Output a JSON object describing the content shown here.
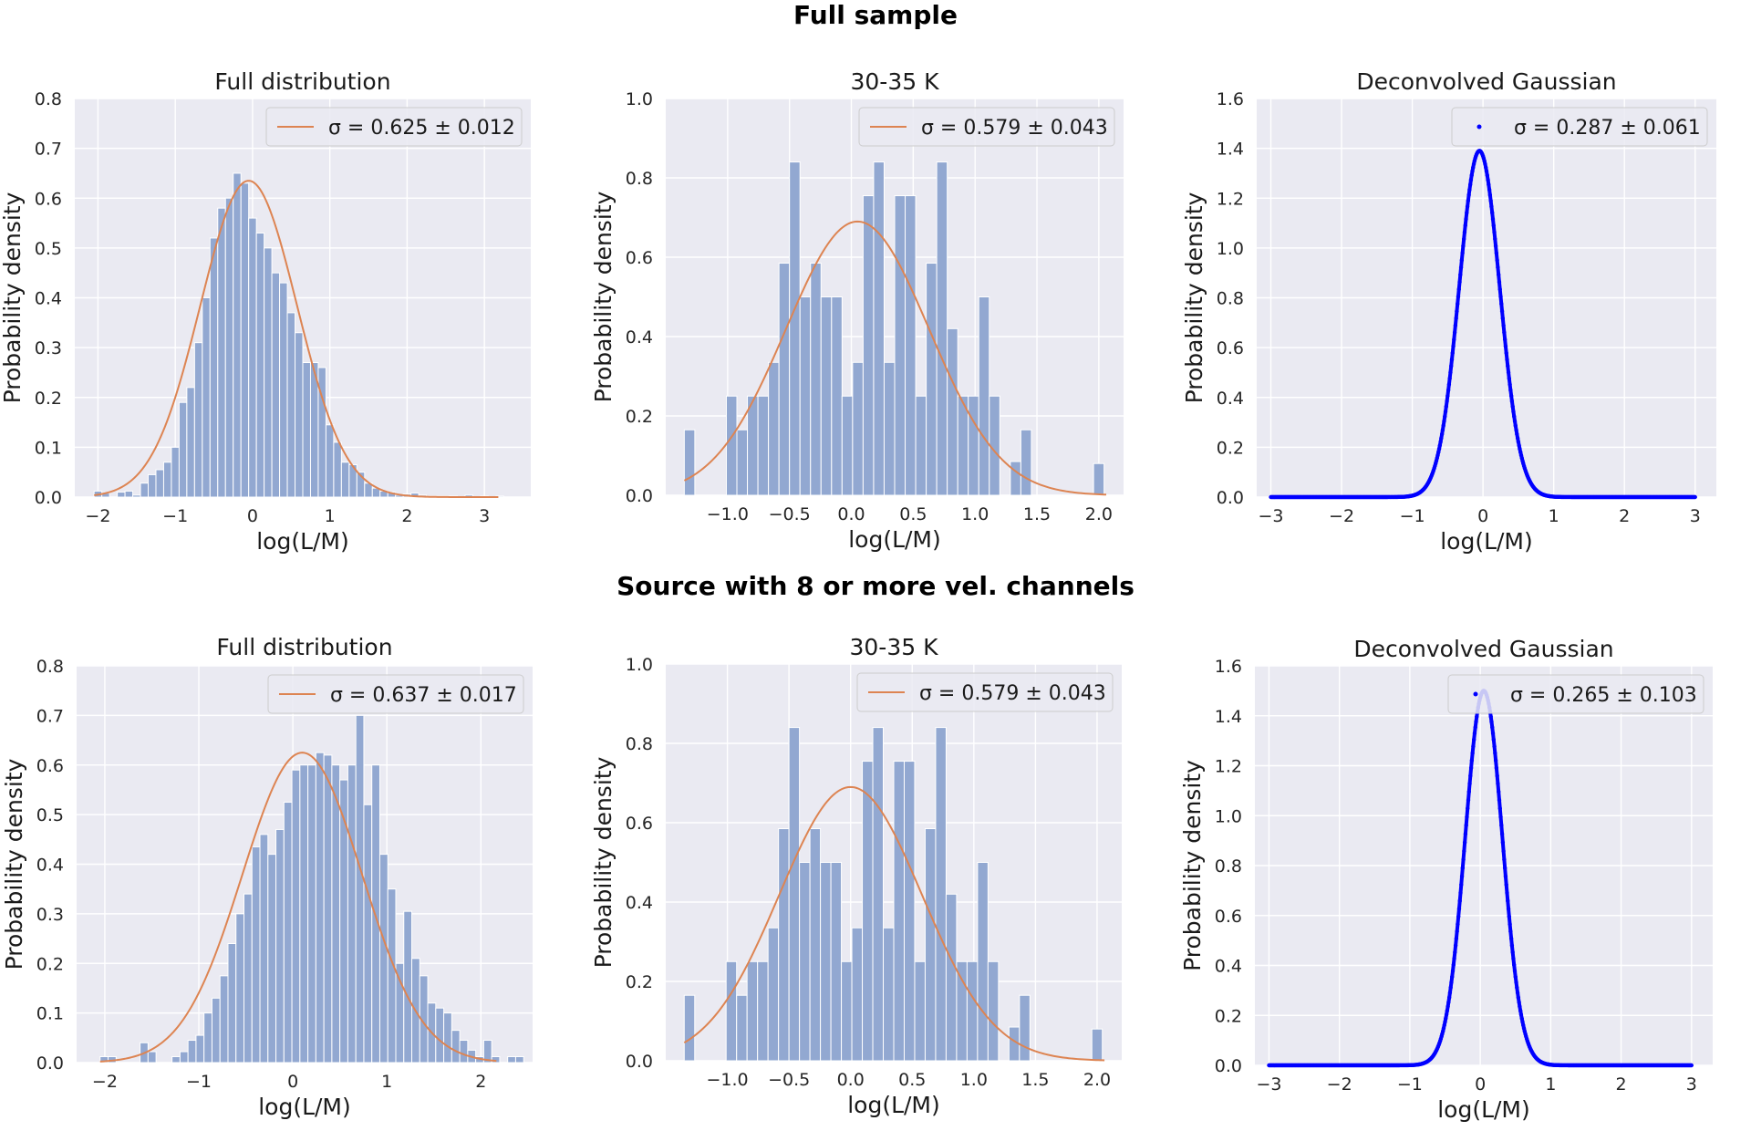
{
  "figure": {
    "row_titles": [
      "Full sample",
      "Source with 8 or more vel. channels"
    ]
  },
  "colors": {
    "panel_bg": "#eaeaf2",
    "grid": "#ffffff",
    "bar": "#92a8d1",
    "fit_line": "#dd8452",
    "gauss": "#0000ff"
  },
  "chart_data": [
    {
      "type": "bar",
      "title": "Full distribution",
      "xlabel": "log(L/M)",
      "ylabel": "Probability density",
      "xlim": [
        -2.3,
        3.6
      ],
      "ylim": [
        0,
        0.8
      ],
      "xticks": [
        -2,
        -1,
        0,
        1,
        2,
        3
      ],
      "yticks": [
        0,
        0.1,
        0.2,
        0.3,
        0.4,
        0.5,
        0.6,
        0.7,
        0.8
      ],
      "bin_start": -2.05,
      "bin_width": 0.1,
      "values": [
        0.012,
        0.008,
        0.0,
        0.01,
        0.012,
        0.004,
        0.028,
        0.045,
        0.055,
        0.07,
        0.1,
        0.19,
        0.22,
        0.31,
        0.4,
        0.52,
        0.58,
        0.6,
        0.65,
        0.63,
        0.56,
        0.53,
        0.5,
        0.45,
        0.43,
        0.37,
        0.33,
        0.27,
        0.27,
        0.26,
        0.145,
        0.11,
        0.07,
        0.065,
        0.05,
        0.028,
        0.018,
        0.012,
        0.01,
        0.004,
        0.006,
        0.008,
        0.004,
        0.002,
        0.002,
        0.002,
        0.002,
        0.0,
        0.004,
        0.0,
        0.002,
        0.0,
        0.002
      ],
      "fit": {
        "mu": -0.05,
        "sigma": 0.625,
        "peak": 0.635
      },
      "legend": "σ = 0.625 ± 0.012"
    },
    {
      "type": "bar",
      "title": "30-35 K",
      "xlabel": "log(L/M)",
      "ylabel": "Probability density",
      "xlim": [
        -1.5,
        2.2
      ],
      "ylim": [
        0,
        1.0
      ],
      "xticks": [
        -1.0,
        -0.5,
        0.0,
        0.5,
        1.0,
        1.5,
        2.0
      ],
      "xtick_labels": [
        "−1.0",
        "−0.5",
        "0.0",
        "0.5",
        "1.0",
        "1.5",
        "2.0"
      ],
      "yticks": [
        0,
        0.2,
        0.4,
        0.6,
        0.8,
        1.0
      ],
      "bin_start": -1.35,
      "bin_width": 0.085,
      "values": [
        0.165,
        0.0,
        0.0,
        0.0,
        0.25,
        0.165,
        0.25,
        0.25,
        0.335,
        0.585,
        0.84,
        0.5,
        0.585,
        0.5,
        0.5,
        0.25,
        0.335,
        0.755,
        0.84,
        0.335,
        0.755,
        0.755,
        0.25,
        0.585,
        0.84,
        0.42,
        0.25,
        0.25,
        0.5,
        0.25,
        0.0,
        0.085,
        0.165,
        0.0,
        0.0,
        0.0,
        0.0,
        0.0,
        0.0,
        0.0,
        0.0,
        0.0,
        0.0,
        0.0,
        0.0,
        0.0,
        0.0,
        0.0,
        0.0,
        0.0,
        0.0,
        0.0,
        0.0,
        0.0,
        0.0,
        0.0,
        0.0,
        0.0,
        0.0,
        0.0,
        0.0,
        0.0,
        0.0,
        0.0,
        0.0,
        0.0,
        0.0,
        0.0
      ],
      "extra_bar": {
        "x": 2.0,
        "value": 0.08
      },
      "fit": {
        "mu": 0.05,
        "sigma": 0.579,
        "peak": 0.69
      },
      "legend": "σ = 0.579 ± 0.043"
    },
    {
      "type": "line",
      "title": "Deconvolved Gaussian",
      "xlabel": "log(L/M)",
      "ylabel": "Probability density",
      "xlim": [
        -3.2,
        3.3
      ],
      "ylim": [
        0,
        1.6
      ],
      "xticks": [
        -3,
        -2,
        -1,
        0,
        1,
        2,
        3
      ],
      "xtick_labels": [
        "−3",
        "−2",
        "−1",
        "0",
        "1",
        "2",
        "3"
      ],
      "yticks": [
        0,
        0.2,
        0.4,
        0.6,
        0.8,
        1.0,
        1.2,
        1.4,
        1.6
      ],
      "curve": {
        "mu": -0.05,
        "sigma": 0.287,
        "peak": 1.39,
        "x_from": -3,
        "x_to": 3
      },
      "legend": "σ = 0.287 ± 0.061"
    },
    {
      "type": "bar",
      "title": "Full distribution",
      "xlabel": "log(L/M)",
      "ylabel": "Probability density",
      "xlim": [
        -2.3,
        2.55
      ],
      "ylim": [
        0,
        0.8
      ],
      "xticks": [
        -2,
        -1,
        0,
        1,
        2
      ],
      "xtick_labels": [
        "−2",
        "−1",
        "0",
        "1",
        "2"
      ],
      "yticks": [
        0,
        0.1,
        0.2,
        0.3,
        0.4,
        0.5,
        0.6,
        0.7,
        0.8
      ],
      "bin_start": -2.05,
      "bin_width": 0.085,
      "values": [
        0.012,
        0.012,
        0.0,
        0.0,
        0.0,
        0.04,
        0.022,
        0.0,
        0.0,
        0.012,
        0.022,
        0.045,
        0.055,
        0.1,
        0.13,
        0.175,
        0.24,
        0.3,
        0.34,
        0.435,
        0.46,
        0.42,
        0.47,
        0.525,
        0.59,
        0.6,
        0.6,
        0.625,
        0.62,
        0.6,
        0.57,
        0.6,
        0.7,
        0.52,
        0.6,
        0.42,
        0.35,
        0.2,
        0.305,
        0.21,
        0.175,
        0.12,
        0.11,
        0.1,
        0.065,
        0.045,
        0.025,
        0.012,
        0.045,
        0.012,
        0.0,
        0.012,
        0.012,
        0.0
      ],
      "fit": {
        "mu": 0.1,
        "sigma": 0.637,
        "peak": 0.625
      },
      "legend": "σ = 0.637 ± 0.017"
    },
    {
      "type": "bar",
      "title": "30-35 K",
      "xlabel": "log(L/M)",
      "ylabel": "Probability density",
      "xlim": [
        -1.5,
        2.2
      ],
      "ylim": [
        0,
        1.0
      ],
      "xticks": [
        -1.0,
        -0.5,
        0.0,
        0.5,
        1.0,
        1.5,
        2.0
      ],
      "xtick_labels": [
        "−1.0",
        "−0.5",
        "0.0",
        "0.5",
        "1.0",
        "1.5",
        "2.0"
      ],
      "yticks": [
        0,
        0.2,
        0.4,
        0.6,
        0.8,
        1.0
      ],
      "bin_start": -1.35,
      "bin_width": 0.085,
      "values": [
        0.165,
        0.0,
        0.0,
        0.0,
        0.25,
        0.165,
        0.25,
        0.25,
        0.335,
        0.585,
        0.84,
        0.5,
        0.585,
        0.5,
        0.5,
        0.25,
        0.335,
        0.755,
        0.84,
        0.335,
        0.755,
        0.755,
        0.25,
        0.585,
        0.84,
        0.42,
        0.25,
        0.25,
        0.5,
        0.25,
        0.0,
        0.085,
        0.165,
        0.0,
        0.0,
        0.0,
        0.0,
        0.0,
        0.0,
        0.0,
        0.0,
        0.0,
        0.0,
        0.0,
        0.0,
        0.0,
        0.0,
        0.0,
        0.0,
        0.0,
        0.0,
        0.0,
        0.0,
        0.0,
        0.0,
        0.0,
        0.0,
        0.0,
        0.0,
        0.0,
        0.0,
        0.0,
        0.0,
        0.0,
        0.0,
        0.0,
        0.0,
        0.0
      ],
      "extra_bar": {
        "x": 2.0,
        "value": 0.08
      },
      "fit": {
        "mu": 0.0,
        "sigma": 0.579,
        "peak": 0.69
      },
      "legend": "σ = 0.579 ± 0.043"
    },
    {
      "type": "line",
      "title": "Deconvolved Gaussian",
      "xlabel": "log(L/M)",
      "ylabel": "Probability density",
      "xlim": [
        -3.2,
        3.3
      ],
      "ylim": [
        0,
        1.6
      ],
      "xticks": [
        -3,
        -2,
        -1,
        0,
        1,
        2,
        3
      ],
      "xtick_labels": [
        "−3",
        "−2",
        "−1",
        "0",
        "1",
        "2",
        "3"
      ],
      "yticks": [
        0,
        0.2,
        0.4,
        0.6,
        0.8,
        1.0,
        1.2,
        1.4,
        1.6
      ],
      "curve": {
        "mu": 0.05,
        "sigma": 0.265,
        "peak": 1.5,
        "x_from": -3,
        "x_to": 3
      },
      "legend": "σ = 0.265 ± 0.103"
    }
  ]
}
